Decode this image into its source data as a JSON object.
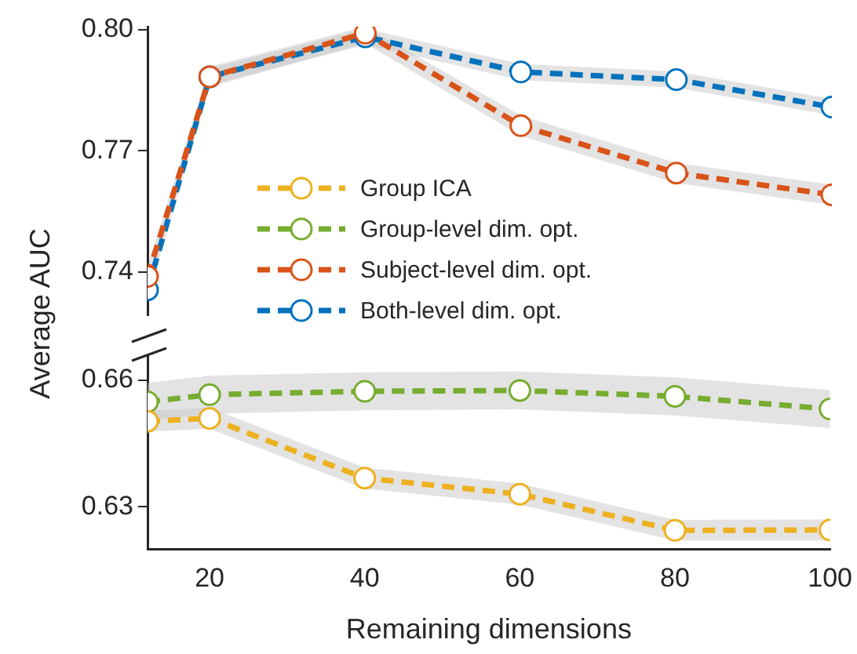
{
  "chart_data": [
    {
      "type": "line",
      "ylabel": "Average AUC",
      "x": [
        12,
        20,
        40,
        60,
        80,
        100
      ],
      "xlim": [
        12,
        100
      ],
      "ylim": [
        0.7294,
        0.8007
      ],
      "yticks": [
        {
          "value": 0.74,
          "label": "0.74"
        },
        {
          "value": 0.77,
          "label": "0.77"
        },
        {
          "value": 0.8,
          "label": "0.80"
        }
      ],
      "tick_labels": "y",
      "legend": "bottom",
      "grid": false,
      "marker": "circle",
      "line_style": "dashed",
      "series": [
        {
          "name": "Subject-level dim. opt.",
          "color": "#d95319",
          "values": [
            0.7389,
            0.7883,
            0.7991,
            0.7762,
            0.7645,
            0.7591
          ],
          "lower": [
            0.7364,
            0.7858,
            0.7966,
            0.7737,
            0.762,
            0.7566
          ],
          "upper": [
            0.7414,
            0.7908,
            0.8007,
            0.7787,
            0.767,
            0.7616
          ]
        },
        {
          "name": "Both-level dim. opt.",
          "color": "#0072bd",
          "values": [
            0.7356,
            0.7883,
            0.7982,
            0.7895,
            0.7876,
            0.7808
          ],
          "lower": [
            0.7336,
            0.7863,
            0.7962,
            0.7875,
            0.7856,
            0.7788
          ],
          "upper": [
            0.7376,
            0.7903,
            0.8002,
            0.7915,
            0.7896,
            0.7828
          ]
        }
      ]
    },
    {
      "type": "line",
      "xlabel": "Remaining dimensions",
      "x": [
        12,
        20,
        40,
        60,
        80,
        100
      ],
      "xlim": [
        12,
        100
      ],
      "xticks": [
        20,
        40,
        60,
        80,
        100
      ],
      "ylim": [
        0.62,
        0.6657
      ],
      "yticks": [
        {
          "value": 0.63,
          "label": "0.63"
        },
        {
          "value": 0.66,
          "label": "0.66"
        }
      ],
      "legend": "top",
      "grid": false,
      "marker": "circle",
      "line_style": "dashed",
      "series": [
        {
          "name": "Group ICA",
          "color": "#edb120",
          "values": [
            0.6503,
            0.651,
            0.6368,
            0.633,
            0.6244,
            0.6245
          ],
          "lower": [
            0.6478,
            0.6485,
            0.6343,
            0.6305,
            0.622,
            0.622
          ],
          "upper": [
            0.6528,
            0.6535,
            0.6393,
            0.6355,
            0.6269,
            0.627
          ]
        },
        {
          "name": "Group-level dim. opt.",
          "color": "#77ac30",
          "values": [
            0.6549,
            0.6566,
            0.6574,
            0.6576,
            0.6562,
            0.6532
          ],
          "lower": [
            0.6504,
            0.6521,
            0.6529,
            0.6531,
            0.6517,
            0.6487
          ],
          "upper": [
            0.6594,
            0.6611,
            0.6619,
            0.6621,
            0.6607,
            0.6577
          ]
        }
      ]
    }
  ]
}
